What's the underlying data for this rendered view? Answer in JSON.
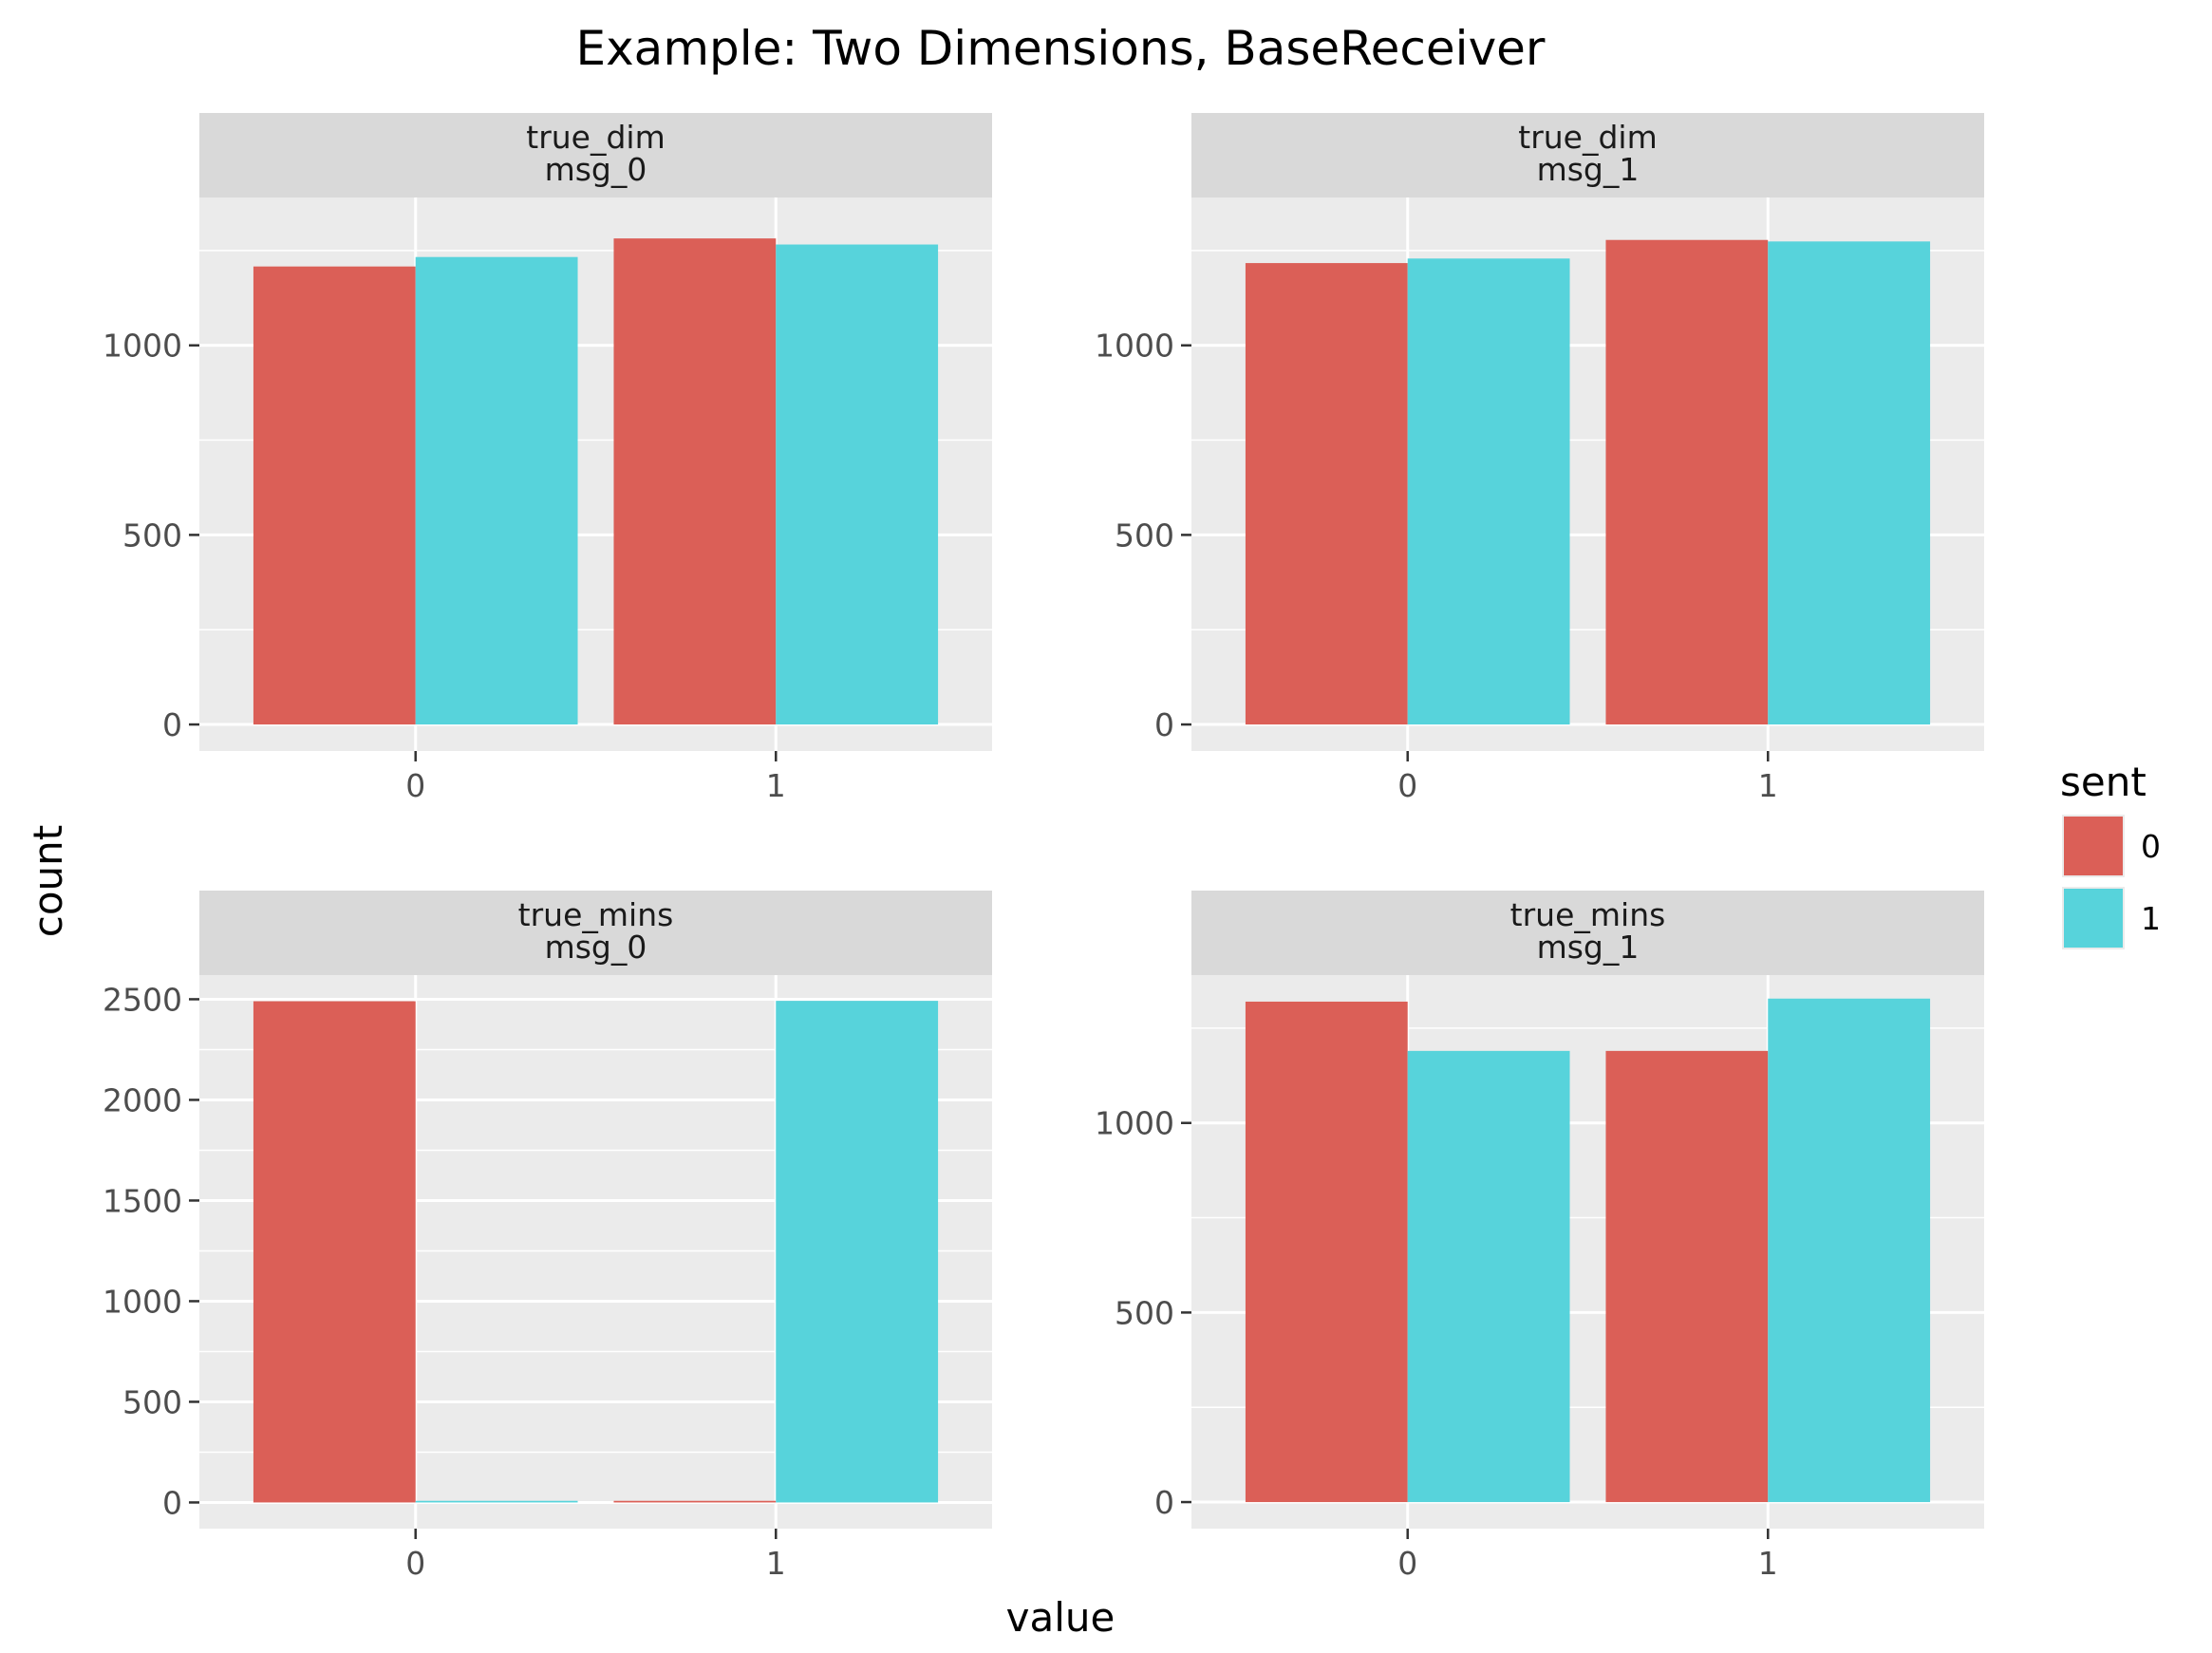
{
  "chart_data": {
    "type": "bar",
    "title": "Example: Two Dimensions, BaseReceiver",
    "xlabel": "value",
    "ylabel": "count",
    "legend": {
      "title": "sent",
      "placement": "right",
      "entries": [
        {
          "label": "0",
          "color": "#db5f57"
        },
        {
          "label": "1",
          "color": "#57d3db"
        }
      ]
    },
    "panels": [
      {
        "strip": [
          "true_dim",
          "msg_0"
        ],
        "categories": [
          "0",
          "1"
        ],
        "series": [
          {
            "key": "0",
            "values": [
              1208,
              1282
            ]
          },
          {
            "key": "1",
            "values": [
              1233,
              1266
            ]
          }
        ],
        "ylim": [
          -70,
          1390
        ],
        "yticks": [
          0,
          500,
          1000
        ],
        "ytick_labels": [
          "0",
          "500",
          "1000"
        ]
      },
      {
        "strip": [
          "true_dim",
          "msg_1"
        ],
        "categories": [
          "0",
          "1"
        ],
        "series": [
          {
            "key": "0",
            "values": [
              1217,
              1278
            ]
          },
          {
            "key": "1",
            "values": [
              1229,
              1274
            ]
          }
        ],
        "ylim": [
          -70,
          1390
        ],
        "yticks": [
          0,
          500,
          1000
        ],
        "ytick_labels": [
          "0",
          "500",
          "1000"
        ]
      },
      {
        "strip": [
          "true_mins",
          "msg_0"
        ],
        "categories": [
          "0",
          "1"
        ],
        "series": [
          {
            "key": "0",
            "values": [
              2490,
              8
            ]
          },
          {
            "key": "1",
            "values": [
              8,
              2492
            ]
          }
        ],
        "ylim": [
          -130,
          2620
        ],
        "yticks": [
          0,
          500,
          1000,
          1500,
          2000,
          2500
        ],
        "ytick_labels": [
          "0",
          "500",
          "1000",
          "1500",
          "2000",
          "2500"
        ]
      },
      {
        "strip": [
          "true_mins",
          "msg_1"
        ],
        "categories": [
          "0",
          "1"
        ],
        "series": [
          {
            "key": "0",
            "values": [
              1320,
              1190
            ]
          },
          {
            "key": "1",
            "values": [
              1190,
              1328
            ]
          }
        ],
        "ylim": [
          -70,
          1390
        ],
        "yticks": [
          0,
          500,
          1000
        ],
        "ytick_labels": [
          "0",
          "500",
          "1000"
        ]
      }
    ]
  }
}
